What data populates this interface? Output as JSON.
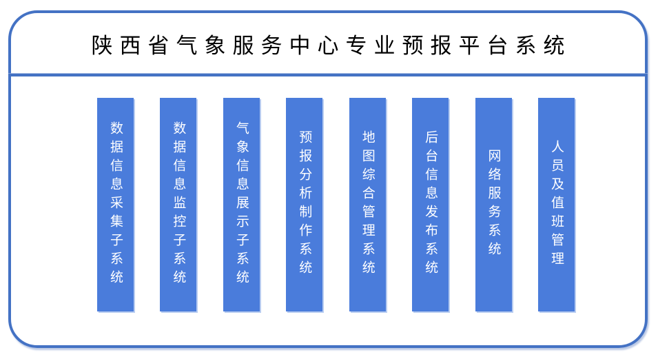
{
  "title": "陕西省气象服务中心专业预报平台系统",
  "bars": [
    {
      "label": "数据信息采集子系统"
    },
    {
      "label": "数据信息监控子系统"
    },
    {
      "label": "气象信息展示子系统"
    },
    {
      "label": "预报分析制作系统"
    },
    {
      "label": "地图综合管理系统"
    },
    {
      "label": "后台信息发布系统"
    },
    {
      "label": "网络服务系统"
    },
    {
      "label": "人员及值班管理"
    }
  ],
  "colors": {
    "frame_border": "#4472C4",
    "bar_fill": "#4A7CDB",
    "bar_edge": "#B8CCF0",
    "bar_text": "#FFFFFF",
    "title_text": "#000000",
    "page_bg": "#FFFFFF"
  }
}
